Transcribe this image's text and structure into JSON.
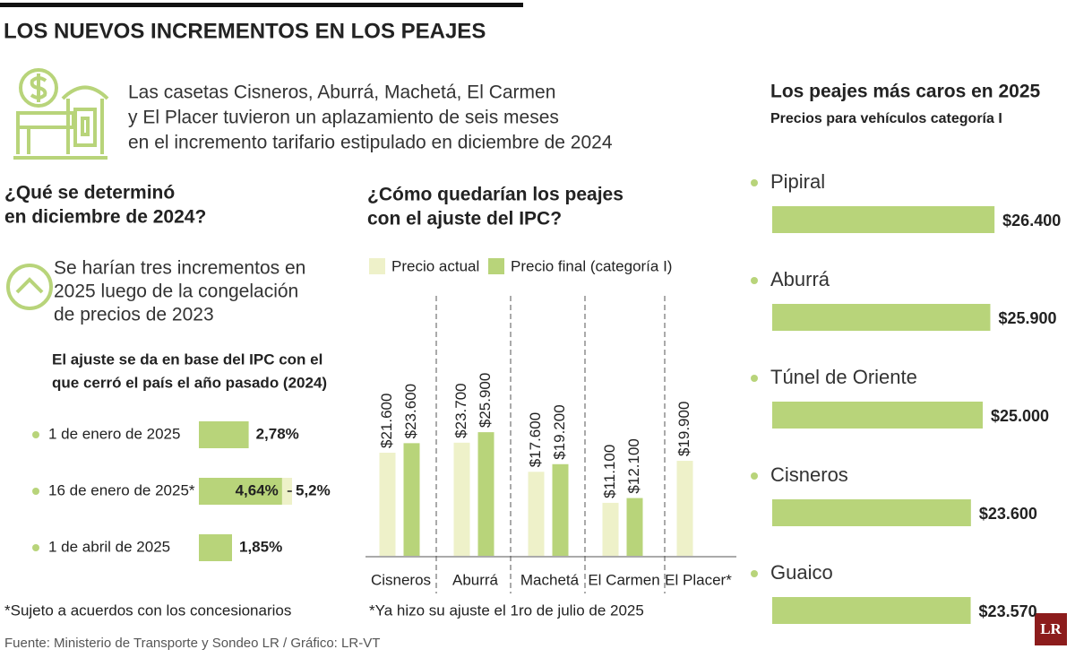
{
  "title": "LOS NUEVOS INCREMENTOS EN LOS PEAJES",
  "intro": [
    "Las casetas Cisneros, Aburrá, Machetá, El Carmen",
    "y El Placer tuvieron un aplazamiento de seis meses",
    "en el incremento tarifario estipulado en diciembre de 2024"
  ],
  "source": "Fuente: Ministerio de Transporte y Sondeo LR / Gráfico: LR-VT",
  "logo": "LR",
  "chart_data": [
    {
      "type": "hbar-range",
      "title": [
        "¿Qué se determinó",
        "en diciembre de 2024?"
      ],
      "lead": [
        "Se harían tres incrementos en",
        "2025 luego de la congelación",
        "de precios de 2023"
      ],
      "subtitle": [
        "El ajuste se da en base del IPC con el",
        "que cerró el país el año pasado (2024)"
      ],
      "categories": [
        "1 de enero de 2025",
        "16 de enero de 2025*",
        "1 de abril de 2025"
      ],
      "values": [
        2.78,
        4.64,
        1.85
      ],
      "value_labels": [
        "2,78%",
        "4,64%",
        "1,85%"
      ],
      "high_values": [
        null,
        5.2,
        null
      ],
      "high_labels": [
        null,
        "5,2%",
        null
      ],
      "color": "#b8d47a",
      "high_color": "#eef1c9",
      "note": "*Sujeto a acuerdos con los concesionarios"
    },
    {
      "type": "grouped-bar",
      "title": [
        "¿Cómo quedarían los peajes",
        "con el ajuste del IPC?"
      ],
      "categories": [
        "Cisneros",
        "Aburrá",
        "Machetá",
        "El Carmen",
        "El Placer*"
      ],
      "series": [
        {
          "name": "Precio actual",
          "color": "#eef1c9",
          "values": [
            21600,
            23700,
            17600,
            11100,
            19900
          ],
          "value_labels": [
            "$21.600",
            "$23.700",
            "$17.600",
            "$11.100",
            "$19.900"
          ]
        },
        {
          "name": "Precio final (categoría I)",
          "color": "#b8d47a",
          "values": [
            23600,
            25900,
            19200,
            12100,
            null
          ],
          "value_labels": [
            "$23.600",
            "$25.900",
            "$19.200",
            "$12.100",
            null
          ]
        }
      ],
      "note": "*Ya hizo su ajuste el 1ro de julio de 2025"
    },
    {
      "type": "hbar",
      "title": "Los peajes más caros en 2025",
      "subtitle": "Precios para vehículos categoría I",
      "categories": [
        "Pipiral",
        "Aburrá",
        "Túnel de Oriente",
        "Cisneros",
        "Guaico"
      ],
      "values": [
        26400,
        25900,
        25000,
        23600,
        23570
      ],
      "value_labels": [
        "$26.400",
        "$25.900",
        "$25.000",
        "$23.600",
        "$23.570"
      ],
      "color": "#b8d47a"
    }
  ]
}
